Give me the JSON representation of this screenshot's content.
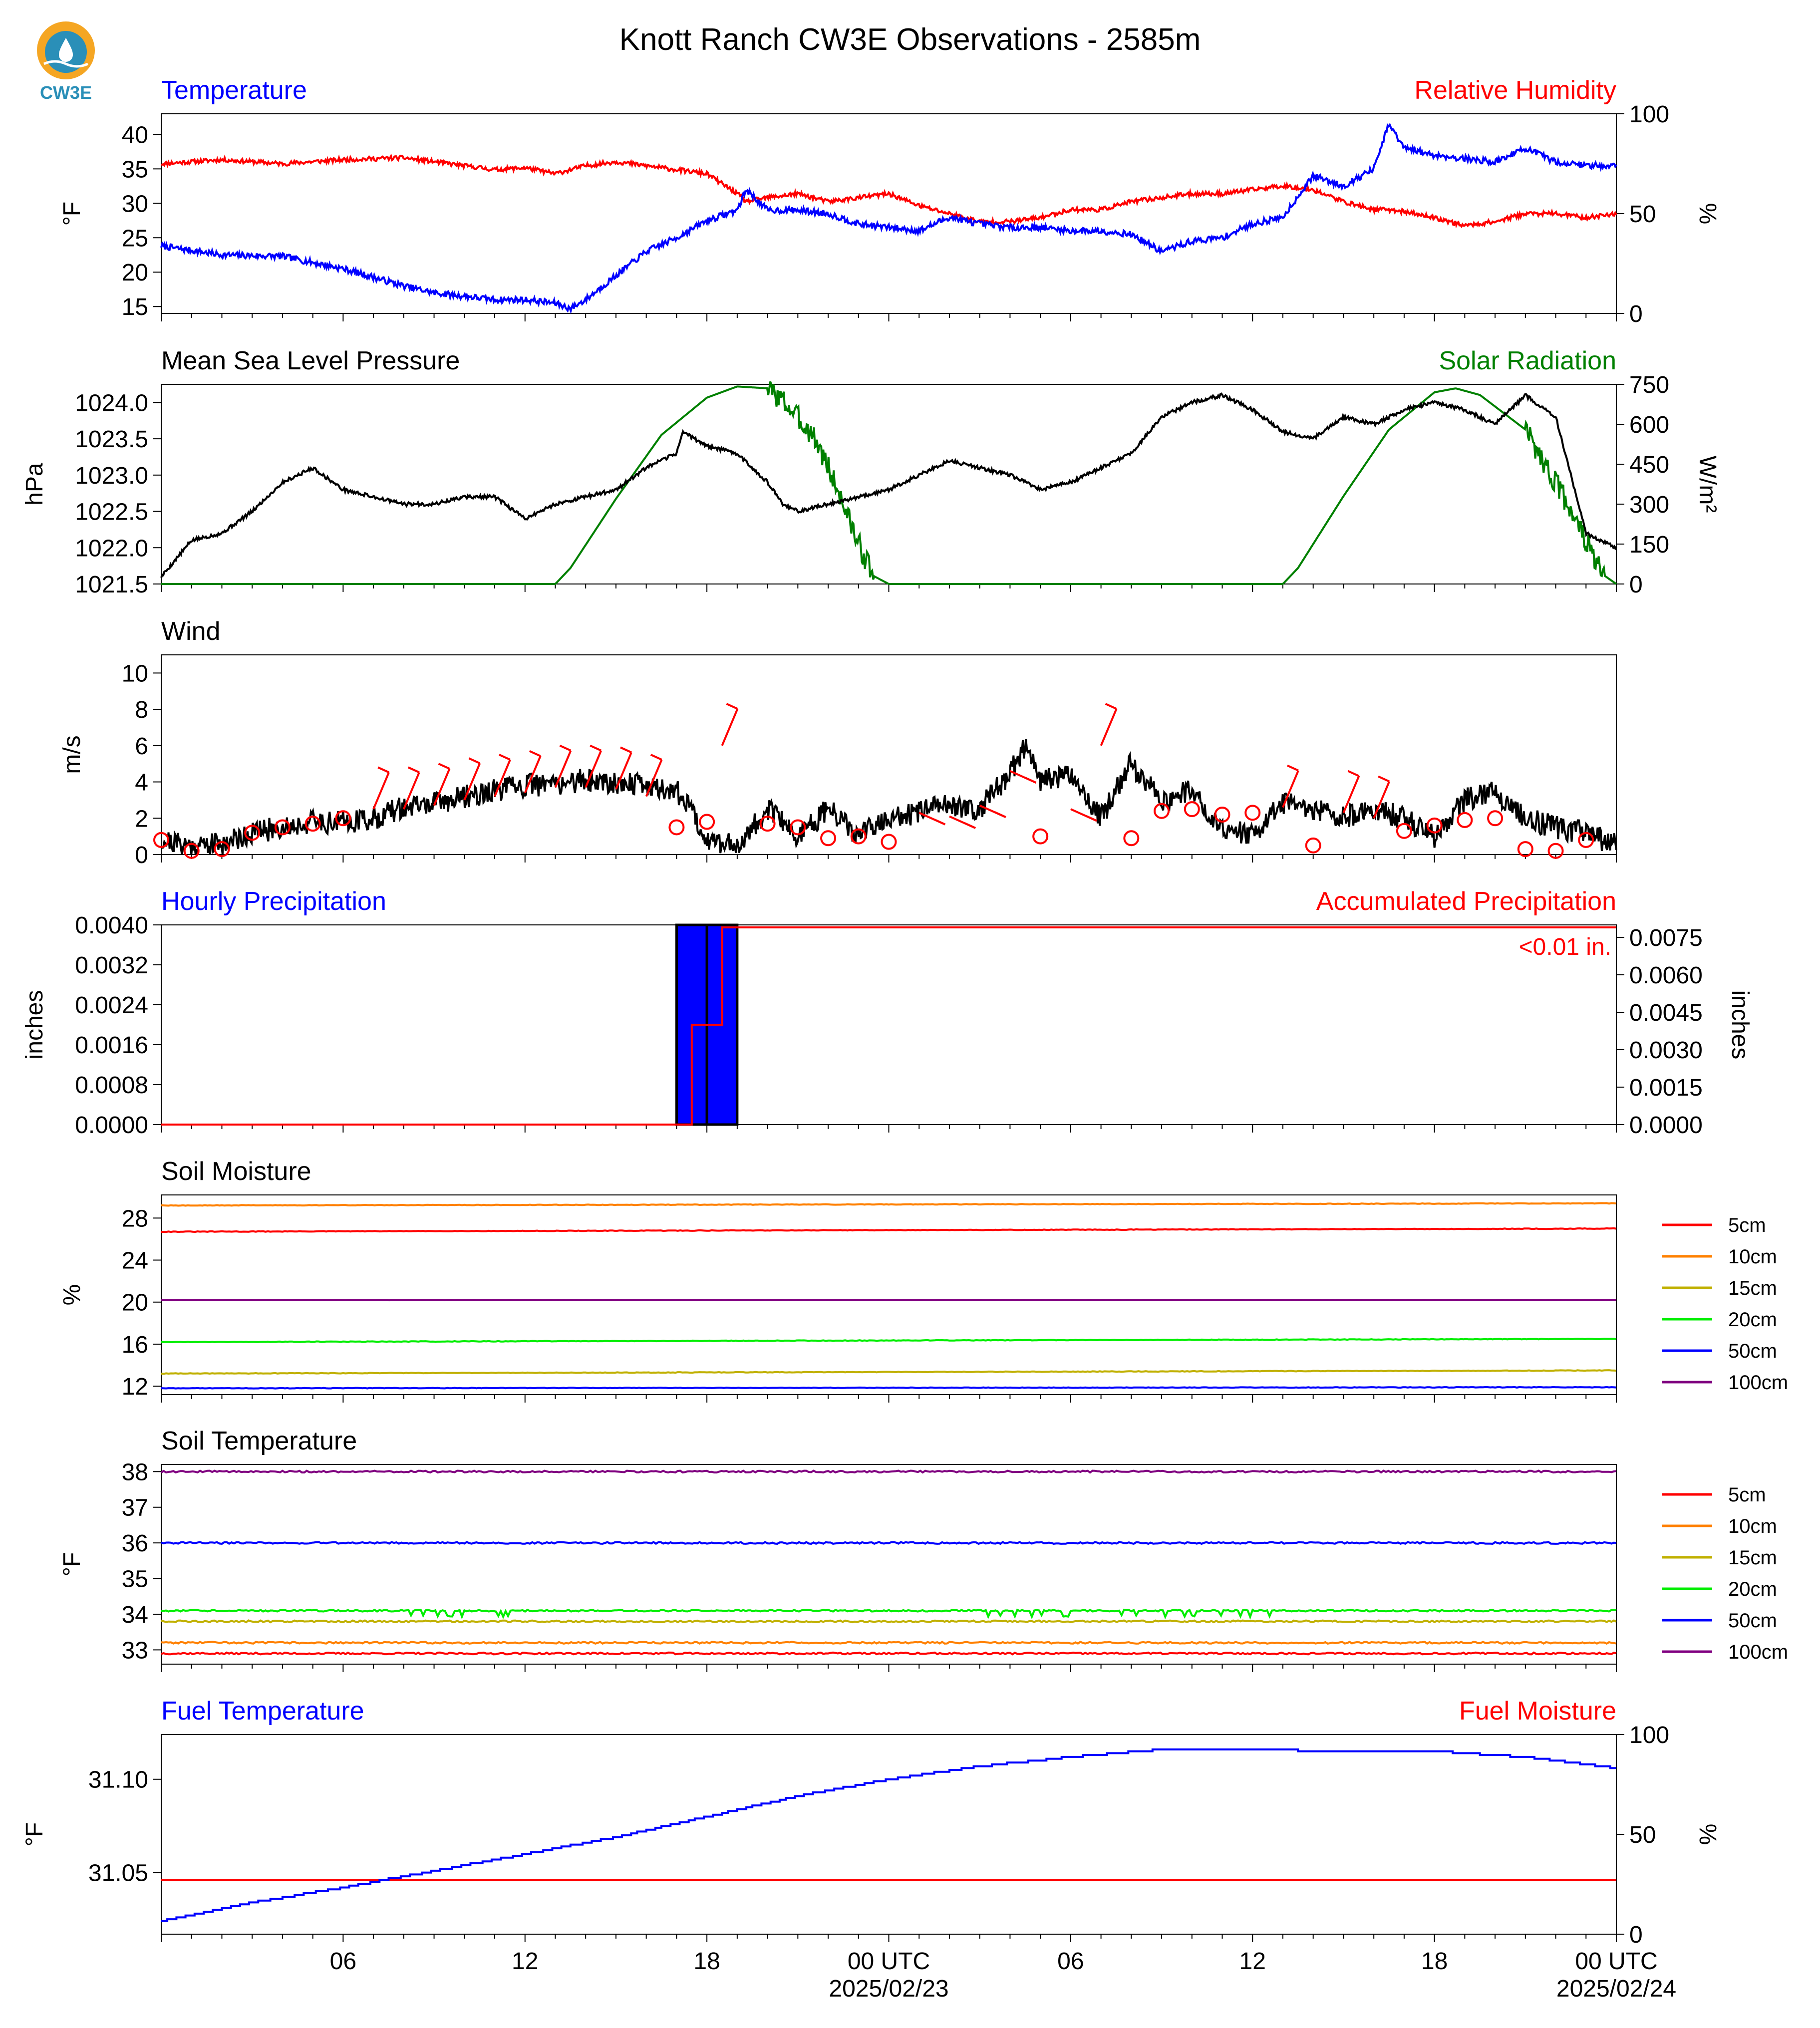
{
  "page": {
    "title": "Knott Ranch CW3E Observations - 2585m",
    "logo_text": "CW3E",
    "x_ticks": [
      "06",
      "12",
      "18",
      "00 UTC",
      "06",
      "12",
      "18",
      "00 UTC"
    ],
    "x_dates": [
      "2025/02/23",
      "2025/02/24"
    ]
  },
  "chart_data": [
    {
      "type": "line",
      "title_left": "Temperature",
      "title_right": "Relative Humidity",
      "ylabel": "°F",
      "ylabel_right": "%",
      "ylim": [
        14,
        43
      ],
      "yticks": [
        "15",
        "20",
        "25",
        "30",
        "35",
        "40"
      ],
      "ylim_right": [
        0,
        100
      ],
      "yticks_right": [
        "0",
        "50",
        "100"
      ],
      "x_hours": [
        0,
        2,
        4,
        6,
        8,
        9,
        10,
        11,
        12,
        13,
        13.5,
        14,
        15,
        16,
        17,
        18,
        19,
        19.3,
        20,
        21,
        22,
        23,
        24,
        25,
        26,
        27,
        28,
        29,
        30,
        31,
        32,
        33,
        34,
        35,
        36,
        37,
        38,
        39,
        40,
        40.5,
        41,
        42,
        43,
        44,
        45,
        46,
        47,
        48
      ],
      "series": [
        {
          "name": "Temperature",
          "color": "#0000ff",
          "axis": "left",
          "values": [
            23.8,
            22.5,
            22.3,
            20.5,
            18.0,
            17.0,
            16.5,
            16.0,
            16.0,
            15.5,
            14.7,
            16.0,
            19.5,
            23.0,
            25.0,
            27.5,
            29.0,
            32.0,
            29.0,
            29.0,
            28.5,
            27.0,
            26.5,
            26.0,
            28.0,
            27.0,
            26.5,
            26.5,
            26.0,
            26.0,
            25.5,
            23.0,
            24.5,
            25.0,
            27.0,
            28.0,
            34.0,
            32.5,
            35.0,
            41.5,
            38.0,
            37.0,
            36.5,
            36.0,
            38.0,
            36.0,
            35.5,
            35.5
          ]
        },
        {
          "name": "Relative Humidity",
          "color": "#ff0000",
          "axis": "right",
          "values": [
            75,
            77,
            75,
            77,
            78,
            76,
            74,
            72,
            73,
            70,
            72,
            74,
            76,
            74,
            72,
            70,
            60,
            56,
            58,
            60,
            56,
            58,
            60,
            54,
            50,
            46,
            46,
            48,
            52,
            52,
            56,
            58,
            60,
            60,
            62,
            64,
            62,
            56,
            52,
            52,
            51,
            48,
            44,
            46,
            50,
            50,
            48,
            50
          ]
        }
      ]
    },
    {
      "type": "line",
      "title_left": "Mean Sea Level Pressure",
      "title_right": "Solar Radiation",
      "ylabel": "hPa",
      "ylabel_right": "W/m²",
      "ylim": [
        1021.5,
        1024.25
      ],
      "yticks": [
        "1021.5",
        "1022.0",
        "1022.5",
        "1023.0",
        "1023.5",
        "1024.0"
      ],
      "ylim_right": [
        0,
        750
      ],
      "yticks_right": [
        "0",
        "150",
        "300",
        "450",
        "600",
        "750"
      ],
      "x_hours": [
        0,
        1,
        2,
        3,
        4,
        5,
        6,
        7,
        8,
        9,
        10,
        11,
        12,
        13,
        14,
        15,
        16,
        17,
        17.2,
        18,
        19,
        20,
        20.5,
        21,
        22,
        23,
        24,
        25,
        26,
        27,
        28,
        29,
        30,
        31,
        32,
        33,
        34,
        35,
        36,
        37,
        38,
        39,
        40,
        41,
        42,
        43,
        44,
        45,
        46,
        47,
        48
      ],
      "series": [
        {
          "name": "Mean Sea Level Pressure",
          "color": "#000000",
          "axis": "left",
          "values": [
            1021.6,
            1022.1,
            1022.2,
            1022.5,
            1022.9,
            1023.1,
            1022.8,
            1022.7,
            1022.6,
            1022.6,
            1022.7,
            1022.7,
            1022.4,
            1022.6,
            1022.7,
            1022.8,
            1023.1,
            1023.3,
            1023.6,
            1023.4,
            1023.3,
            1022.9,
            1022.6,
            1022.5,
            1022.6,
            1022.7,
            1022.8,
            1023.0,
            1023.2,
            1023.1,
            1023.0,
            1022.8,
            1022.9,
            1023.1,
            1023.3,
            1023.8,
            1024.0,
            1024.1,
            1023.9,
            1023.6,
            1023.5,
            1023.8,
            1023.7,
            1023.9,
            1024.0,
            1023.9,
            1023.7,
            1024.1,
            1023.8,
            1022.2,
            1022.0
          ]
        },
        {
          "name": "Solar Radiation",
          "color": "#008000",
          "axis": "right",
          "points": [
            [
              0,
              0
            ],
            [
              13.0,
              0
            ],
            [
              13.5,
              60
            ],
            [
              15,
              320
            ],
            [
              16.5,
              560
            ],
            [
              18,
              700
            ],
            [
              19,
              742
            ],
            [
              20,
              735
            ],
            [
              20.5,
              690
            ],
            [
              21.5,
              560
            ],
            [
              22,
              440
            ],
            [
              22.5,
              300
            ],
            [
              23,
              150
            ],
            [
              23.5,
              30
            ],
            [
              24,
              0
            ],
            [
              37,
              0
            ],
            [
              37.5,
              60
            ],
            [
              39,
              330
            ],
            [
              40.5,
              580
            ],
            [
              42,
              720
            ],
            [
              42.7,
              735
            ],
            [
              43.5,
              710
            ],
            [
              45,
              580
            ],
            [
              46,
              380
            ],
            [
              46.5,
              280
            ],
            [
              47,
              160
            ],
            [
              47.5,
              40
            ],
            [
              48,
              0
            ]
          ]
        }
      ]
    },
    {
      "type": "line",
      "title_left": "Wind",
      "ylabel": "m/s",
      "ylim": [
        0,
        11
      ],
      "yticks": [
        "0",
        "2",
        "4",
        "6",
        "8",
        "10"
      ],
      "x_hours": [
        0,
        1,
        2,
        3,
        4,
        5,
        6,
        7,
        8,
        9,
        10,
        11,
        12,
        13,
        14,
        15,
        16,
        17,
        17.5,
        18,
        19,
        20,
        21,
        22,
        23,
        24,
        25,
        26,
        27,
        28,
        28.5,
        29,
        30,
        31,
        32,
        33,
        34,
        35,
        36,
        37,
        38,
        39,
        40,
        41,
        42,
        43,
        44,
        45,
        46,
        47,
        48
      ],
      "series": [
        {
          "name": "Wind Speed",
          "color": "#000000",
          "values": [
            0.8,
            0.5,
            0.6,
            1.2,
            1.5,
            1.8,
            1.8,
            2.0,
            2.6,
            2.8,
            3.2,
            3.5,
            3.8,
            3.9,
            4.1,
            4.0,
            3.8,
            3.5,
            2.5,
            0.8,
            0.5,
            2.5,
            1.0,
            2.5,
            1.0,
            2.0,
            2.3,
            2.8,
            2.5,
            4.5,
            6.0,
            4.0,
            4.5,
            2.0,
            5.0,
            3.0,
            3.5,
            1.5,
            1.0,
            2.8,
            2.5,
            2.0,
            2.5,
            2.0,
            1.0,
            3.0,
            3.5,
            2.0,
            1.5,
            1.2,
            0.5
          ]
        },
        {
          "name": "Wind Barbs",
          "color": "#ff0000",
          "barbs": [
            [
              0,
              0.8,
              "calm"
            ],
            [
              1,
              0.2,
              "calm"
            ],
            [
              2,
              0.3,
              "calm"
            ],
            [
              3,
              1.2,
              "calm"
            ],
            [
              4,
              1.5,
              "calm"
            ],
            [
              5,
              1.7,
              "calm"
            ],
            [
              6,
              2.0,
              "calm"
            ],
            [
              7,
              2.5,
              3
            ],
            [
              8,
              2.5,
              3
            ],
            [
              9,
              2.7,
              3
            ],
            [
              10,
              3.0,
              3
            ],
            [
              11,
              3.2,
              4
            ],
            [
              12,
              3.4,
              4
            ],
            [
              13,
              3.7,
              4
            ],
            [
              14,
              3.7,
              4
            ],
            [
              15,
              3.6,
              4
            ],
            [
              16,
              3.2,
              4
            ],
            [
              17,
              1.5,
              "calm"
            ],
            [
              18,
              1.8,
              "calm"
            ],
            [
              18.5,
              6.0,
              4
            ],
            [
              20,
              1.7,
              "calm"
            ],
            [
              21,
              1.5,
              "calm"
            ],
            [
              22,
              0.9,
              "calm"
            ],
            [
              23,
              1.0,
              "calm"
            ],
            [
              24,
              0.7,
              "calm"
            ],
            [
              25,
              2.3,
              3
            ],
            [
              26,
              2.1,
              3
            ],
            [
              27,
              2.7,
              4
            ],
            [
              28,
              4.6,
              4
            ],
            [
              29,
              1.0,
              "calm"
            ],
            [
              30,
              2.5,
              4
            ],
            [
              31,
              6.0,
              4
            ],
            [
              32,
              0.9,
              "calm"
            ],
            [
              33,
              2.4,
              "calm"
            ],
            [
              34,
              2.5,
              "calm"
            ],
            [
              35,
              2.2,
              "calm"
            ],
            [
              36,
              2.3,
              "calm"
            ],
            [
              37,
              2.6,
              3
            ],
            [
              38,
              0.5,
              "calm"
            ],
            [
              39,
              2.3,
              3
            ],
            [
              40,
              2.0,
              3
            ],
            [
              41,
              1.3,
              "calm"
            ],
            [
              42,
              1.6,
              "calm"
            ],
            [
              43,
              1.9,
              "calm"
            ],
            [
              44,
              2.0,
              "calm"
            ],
            [
              45,
              0.3,
              "calm"
            ],
            [
              46,
              0.2,
              "calm"
            ],
            [
              47,
              0.8,
              "calm"
            ]
          ]
        }
      ]
    },
    {
      "type": "bar",
      "title_left": "Hourly Precipitation",
      "title_right": "Accumulated Precipitation",
      "ylabel": "inches",
      "ylabel_right": "inches",
      "ylim": [
        0,
        0.004
      ],
      "yticks": [
        "0.0000",
        "0.0008",
        "0.0016",
        "0.0024",
        "0.0032",
        "0.0040"
      ],
      "ylim_right": [
        0,
        0.008
      ],
      "yticks_right": [
        "0.0000",
        "0.0015",
        "0.0030",
        "0.0045",
        "0.0060",
        "0.0075"
      ],
      "annotation": "<0.01 in.",
      "bars": [
        {
          "start_hour": 17,
          "end_hour": 18,
          "value": 0.004
        },
        {
          "start_hour": 18,
          "end_hour": 19,
          "value": 0.004
        }
      ],
      "series": [
        {
          "name": "Accumulated Precipitation",
          "color": "#ff0000",
          "points": [
            [
              0,
              0
            ],
            [
              17.5,
              0
            ],
            [
              17.5,
              0.004
            ],
            [
              18.5,
              0.004
            ],
            [
              18.5,
              0.0079
            ],
            [
              48,
              0.0079
            ]
          ]
        }
      ]
    },
    {
      "type": "line",
      "title_left": "Soil Moisture",
      "ylabel": "%",
      "ylim": [
        11.2,
        30.2
      ],
      "yticks": [
        "12",
        "16",
        "20",
        "24",
        "28"
      ],
      "legend": [
        "5cm",
        "10cm",
        "15cm",
        "20cm",
        "50cm",
        "100cm"
      ],
      "series": [
        {
          "name": "5cm",
          "color": "#ff0000",
          "start": 26.7,
          "end": 27.0
        },
        {
          "name": "10cm",
          "color": "#ff8000",
          "start": 29.2,
          "end": 29.4
        },
        {
          "name": "15cm",
          "color": "#c0b000",
          "start": 13.2,
          "end": 13.5
        },
        {
          "name": "20cm",
          "color": "#00ee00",
          "start": 16.2,
          "end": 16.5
        },
        {
          "name": "50cm",
          "color": "#0000ff",
          "start": 11.8,
          "end": 11.9
        },
        {
          "name": "100cm",
          "color": "#800080",
          "start": 20.2,
          "end": 20.2
        }
      ]
    },
    {
      "type": "line",
      "title_left": "Soil Temperature",
      "ylabel": "°F",
      "ylim": [
        32.6,
        38.2
      ],
      "yticks": [
        "33",
        "34",
        "35",
        "36",
        "37",
        "38"
      ],
      "legend": [
        "5cm",
        "10cm",
        "15cm",
        "20cm",
        "50cm",
        "100cm"
      ],
      "series": [
        {
          "name": "5cm",
          "color": "#ff0000",
          "start": 32.9,
          "end": 32.9
        },
        {
          "name": "10cm",
          "color": "#ff8000",
          "start": 33.2,
          "end": 33.2
        },
        {
          "name": "15cm",
          "color": "#c0b000",
          "start": 33.8,
          "end": 33.8
        },
        {
          "name": "20cm",
          "color": "#00ee00",
          "start": 34.1,
          "end": 34.1
        },
        {
          "name": "50cm",
          "color": "#0000ff",
          "start": 36.0,
          "end": 36.0
        },
        {
          "name": "100cm",
          "color": "#800080",
          "start": 38.0,
          "end": 38.0
        }
      ]
    },
    {
      "type": "line",
      "title_left": "Fuel Temperature",
      "title_right": "Fuel Moisture",
      "ylabel": "°F",
      "ylabel_right": "%",
      "ylim": [
        31.017,
        31.124
      ],
      "yticks": [
        "31.05",
        "31.10"
      ],
      "ylim_right": [
        0,
        100
      ],
      "yticks_right": [
        "0",
        "50",
        "100"
      ],
      "x_hours": [
        0,
        3,
        6,
        9,
        12,
        15,
        18,
        21,
        24,
        27,
        30,
        33,
        36,
        39,
        42,
        45,
        48
      ],
      "series": [
        {
          "name": "Fuel Temperature",
          "color": "#0000ff",
          "axis": "left",
          "values": [
            31.024,
            31.034,
            31.042,
            31.051,
            31.06,
            31.069,
            31.08,
            31.091,
            31.1,
            31.107,
            31.112,
            31.116,
            31.116,
            31.115,
            31.115,
            31.112,
            31.106
          ]
        },
        {
          "name": "Fuel Moisture",
          "color": "#ff0000",
          "axis": "right",
          "start": 27,
          "end": 27
        }
      ]
    }
  ]
}
